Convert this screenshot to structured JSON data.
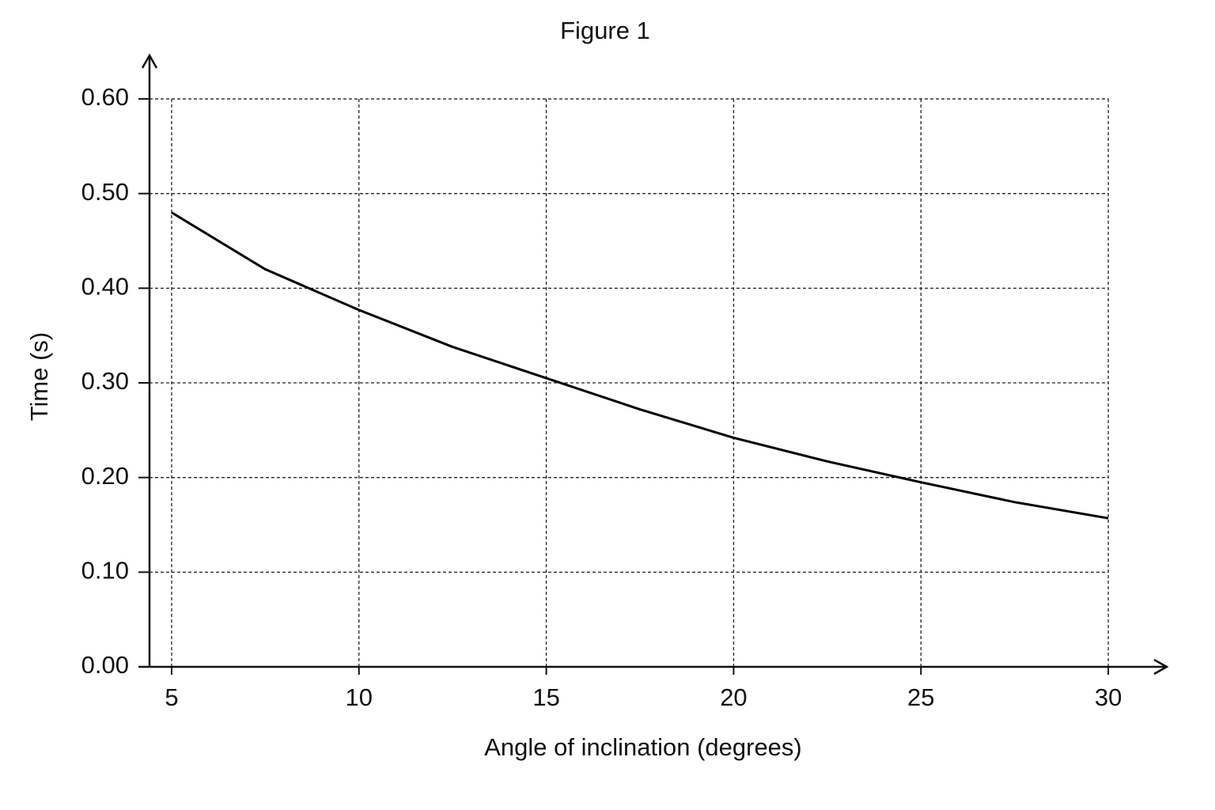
{
  "chart_data": {
    "type": "line",
    "title": "Figure 1",
    "x_label": "Angle of inclination (degrees)",
    "y_label": "Time (s)",
    "x": [
      5,
      7.5,
      10,
      12.5,
      15,
      17.5,
      20,
      22.5,
      25,
      27.5,
      30
    ],
    "values": [
      0.48,
      0.42,
      0.377,
      0.338,
      0.305,
      0.272,
      0.242,
      0.217,
      0.195,
      0.174,
      0.157
    ],
    "color": "#000000",
    "xlim": [
      4.41,
      31.56
    ],
    "ylim": [
      0,
      0.646
    ],
    "xticks": [
      5,
      10,
      15,
      20,
      25,
      30
    ],
    "yticks": [
      {
        "value": 0,
        "label": "0.00"
      },
      {
        "value": 0.1,
        "label": "0.10"
      },
      {
        "value": 0.2,
        "label": "0.20"
      },
      {
        "value": 0.3,
        "label": "0.30"
      },
      {
        "value": 0.4,
        "label": "0.40"
      },
      {
        "value": 0.5,
        "label": "0.50"
      },
      {
        "value": 0.6,
        "label": "0.60"
      }
    ],
    "grid": true
  }
}
